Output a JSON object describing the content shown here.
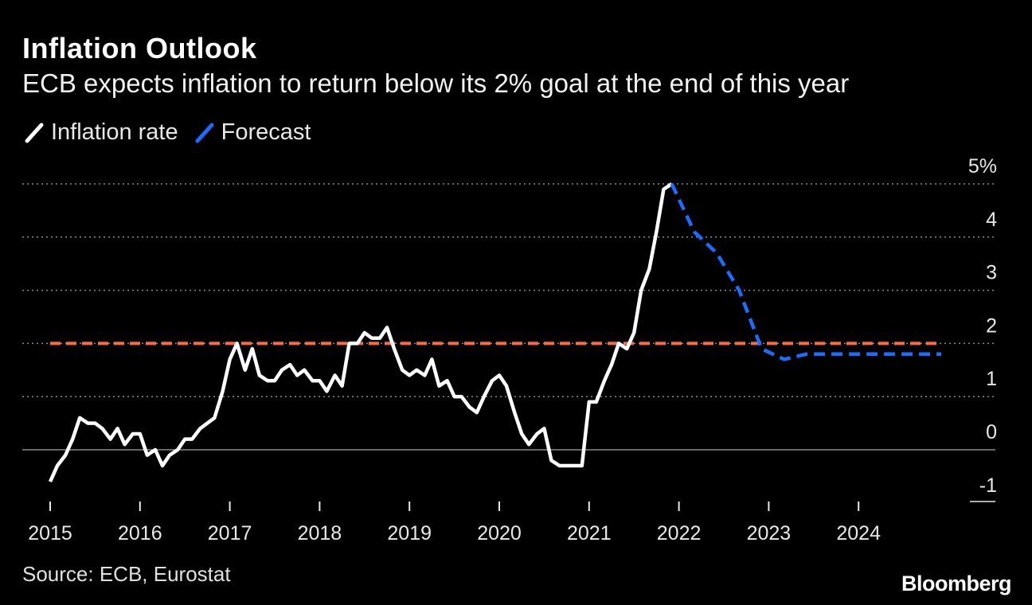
{
  "header": {
    "title": "Inflation Outlook",
    "subtitle": "ECB expects inflation to return below its 2% goal at the end of this year"
  },
  "legend": [
    {
      "label": "Inflation rate",
      "color": "#ffffff",
      "style": "solid"
    },
    {
      "label": "Forecast",
      "color": "#1a6dff",
      "style": "dashed"
    }
  ],
  "footer": {
    "source": "Source: ECB, Eurostat",
    "brand": "Bloomberg"
  },
  "chart_data": {
    "type": "line",
    "x_unit": "year",
    "xlim": [
      2015,
      2025
    ],
    "ylim": [
      -1,
      5
    ],
    "x_ticks": [
      "2015",
      "2016",
      "2017",
      "2018",
      "2019",
      "2020",
      "2021",
      "2022",
      "2023",
      "2024"
    ],
    "y_ticks": [
      {
        "value": 5,
        "label": "5%"
      },
      {
        "value": 4,
        "label": "4"
      },
      {
        "value": 3,
        "label": "3"
      },
      {
        "value": 2,
        "label": "2"
      },
      {
        "value": 1,
        "label": "1"
      },
      {
        "value": 0,
        "label": "0"
      },
      {
        "value": -1,
        "label": "-1"
      }
    ],
    "grid": true,
    "target_line": {
      "value": 2,
      "color": "#ff6b3d",
      "style": "dashed"
    },
    "series": [
      {
        "name": "Inflation rate",
        "color": "#ffffff",
        "style": "solid",
        "points": [
          [
            2015.0,
            -0.6
          ],
          [
            2015.08,
            -0.3
          ],
          [
            2015.17,
            -0.1
          ],
          [
            2015.25,
            0.2
          ],
          [
            2015.33,
            0.6
          ],
          [
            2015.42,
            0.5
          ],
          [
            2015.5,
            0.5
          ],
          [
            2015.58,
            0.4
          ],
          [
            2015.67,
            0.2
          ],
          [
            2015.75,
            0.4
          ],
          [
            2015.83,
            0.1
          ],
          [
            2015.92,
            0.3
          ],
          [
            2016.0,
            0.3
          ],
          [
            2016.08,
            -0.1
          ],
          [
            2016.17,
            0.0
          ],
          [
            2016.25,
            -0.3
          ],
          [
            2016.33,
            -0.1
          ],
          [
            2016.42,
            0.0
          ],
          [
            2016.5,
            0.2
          ],
          [
            2016.58,
            0.2
          ],
          [
            2016.67,
            0.4
          ],
          [
            2016.75,
            0.5
          ],
          [
            2016.83,
            0.6
          ],
          [
            2016.92,
            1.1
          ],
          [
            2017.0,
            1.7
          ],
          [
            2017.08,
            2.0
          ],
          [
            2017.17,
            1.5
          ],
          [
            2017.25,
            1.9
          ],
          [
            2017.33,
            1.4
          ],
          [
            2017.42,
            1.3
          ],
          [
            2017.5,
            1.3
          ],
          [
            2017.58,
            1.5
          ],
          [
            2017.67,
            1.6
          ],
          [
            2017.75,
            1.4
          ],
          [
            2017.83,
            1.5
          ],
          [
            2017.92,
            1.3
          ],
          [
            2018.0,
            1.3
          ],
          [
            2018.08,
            1.1
          ],
          [
            2018.17,
            1.4
          ],
          [
            2018.25,
            1.2
          ],
          [
            2018.33,
            2.0
          ],
          [
            2018.42,
            2.0
          ],
          [
            2018.5,
            2.2
          ],
          [
            2018.58,
            2.1
          ],
          [
            2018.67,
            2.1
          ],
          [
            2018.75,
            2.3
          ],
          [
            2018.83,
            1.9
          ],
          [
            2018.92,
            1.5
          ],
          [
            2019.0,
            1.4
          ],
          [
            2019.08,
            1.5
          ],
          [
            2019.17,
            1.4
          ],
          [
            2019.25,
            1.7
          ],
          [
            2019.33,
            1.2
          ],
          [
            2019.42,
            1.3
          ],
          [
            2019.5,
            1.0
          ],
          [
            2019.58,
            1.0
          ],
          [
            2019.67,
            0.8
          ],
          [
            2019.75,
            0.7
          ],
          [
            2019.83,
            1.0
          ],
          [
            2019.92,
            1.3
          ],
          [
            2020.0,
            1.4
          ],
          [
            2020.08,
            1.2
          ],
          [
            2020.17,
            0.7
          ],
          [
            2020.25,
            0.3
          ],
          [
            2020.33,
            0.1
          ],
          [
            2020.42,
            0.3
          ],
          [
            2020.5,
            0.4
          ],
          [
            2020.58,
            -0.2
          ],
          [
            2020.67,
            -0.3
          ],
          [
            2020.75,
            -0.3
          ],
          [
            2020.83,
            -0.3
          ],
          [
            2020.92,
            -0.3
          ],
          [
            2021.0,
            0.9
          ],
          [
            2021.08,
            0.9
          ],
          [
            2021.17,
            1.3
          ],
          [
            2021.25,
            1.6
          ],
          [
            2021.33,
            2.0
          ],
          [
            2021.42,
            1.9
          ],
          [
            2021.5,
            2.2
          ],
          [
            2021.58,
            3.0
          ],
          [
            2021.67,
            3.4
          ],
          [
            2021.75,
            4.1
          ],
          [
            2021.83,
            4.9
          ],
          [
            2021.92,
            5.0
          ]
        ]
      },
      {
        "name": "Forecast",
        "color": "#1a6dff",
        "style": "dashed",
        "points": [
          [
            2021.92,
            5.0
          ],
          [
            2022.17,
            4.1
          ],
          [
            2022.42,
            3.7
          ],
          [
            2022.67,
            3.0
          ],
          [
            2022.92,
            1.9
          ],
          [
            2023.17,
            1.7
          ],
          [
            2023.42,
            1.8
          ],
          [
            2023.67,
            1.8
          ],
          [
            2023.92,
            1.8
          ],
          [
            2024.17,
            1.8
          ],
          [
            2024.42,
            1.8
          ],
          [
            2024.67,
            1.8
          ],
          [
            2024.92,
            1.8
          ]
        ]
      }
    ]
  }
}
